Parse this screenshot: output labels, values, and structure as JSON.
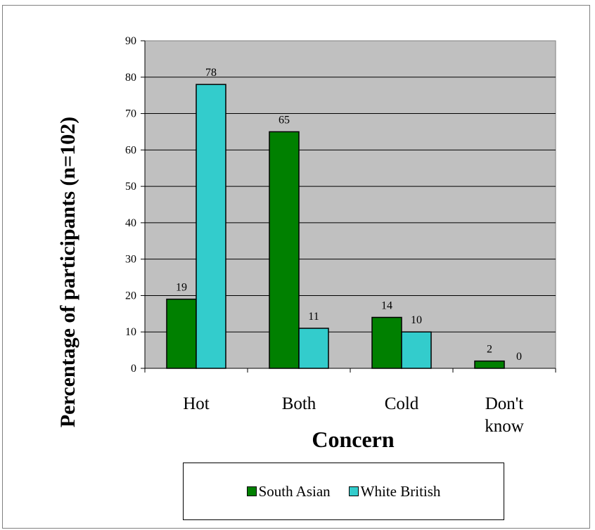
{
  "chart_data": {
    "type": "bar",
    "categories": [
      [
        "Hot"
      ],
      [
        "Both"
      ],
      [
        "Cold"
      ],
      [
        "Don't",
        "know"
      ]
    ],
    "series": [
      {
        "name": "South Asian",
        "color": "#008000",
        "values": [
          19,
          65,
          14,
          2
        ]
      },
      {
        "name": "White British",
        "color": "#33CCCC",
        "values": [
          78,
          11,
          10,
          0
        ]
      }
    ],
    "xlabel": "Concern",
    "ylabel": "Percentage of participants (n=102)",
    "ylim": [
      0,
      90
    ],
    "yticks": [
      0,
      10,
      20,
      30,
      40,
      50,
      60,
      70,
      80,
      90
    ],
    "plot_background": "#C0C0C0",
    "grid": true,
    "legend_position": "bottom"
  }
}
